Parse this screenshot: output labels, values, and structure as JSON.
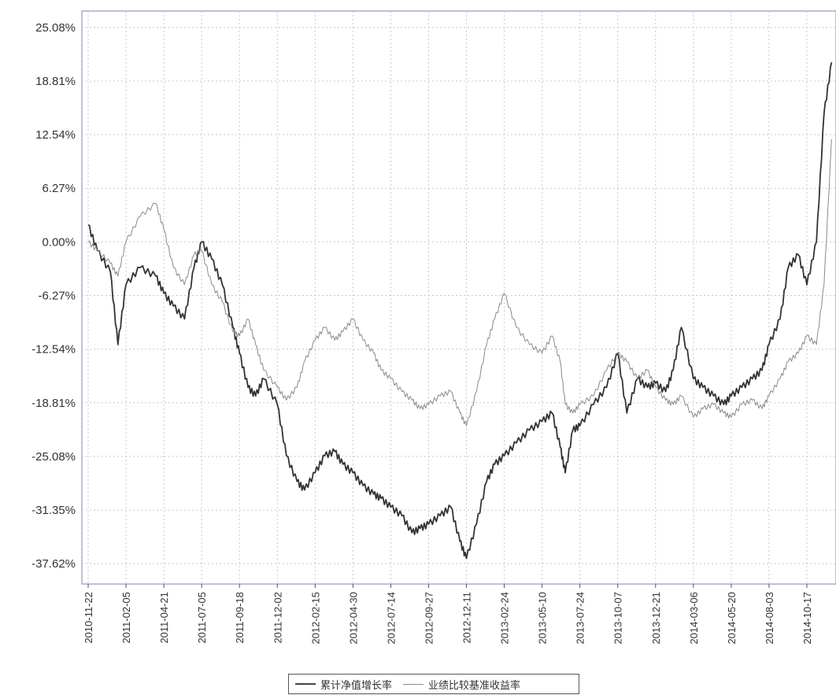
{
  "chart_data": {
    "type": "line",
    "title": "",
    "xlabel": "",
    "ylabel": "",
    "y_unit": "%",
    "ylim": [
      -40.0,
      27.0
    ],
    "y_ticks": [
      25.08,
      18.81,
      12.54,
      6.27,
      0.0,
      -6.27,
      -12.54,
      -18.81,
      -25.08,
      -31.35,
      -37.62
    ],
    "y_tick_labels": [
      "25.08%",
      "18.81%",
      "12.54%",
      "6.27%",
      "0.00%",
      "-6.27%",
      "-12.54%",
      "-18.81%",
      "-25.08%",
      "-31.35%",
      "-37.62%"
    ],
    "x_tick_labels": [
      "2010-11-22",
      "2011-02-05",
      "2011-04-21",
      "2011-07-05",
      "2011-09-18",
      "2011-12-02",
      "2012-02-15",
      "2012-04-30",
      "2012-07-14",
      "2012-09-27",
      "2012-12-11",
      "2013-02-24",
      "2013-05-10",
      "2013-07-24",
      "2013-10-07",
      "2013-12-21",
      "2014-03-06",
      "2014-05-20",
      "2014-08-03",
      "2014-10-17"
    ],
    "grid": true,
    "legend_position": "bottom",
    "series": [
      {
        "name": "累计净值增长率",
        "color": "#333333",
        "x": [
          "2010-11-22",
          "2010-12-10",
          "2011-01-05",
          "2011-01-20",
          "2011-02-05",
          "2011-03-05",
          "2011-04-05",
          "2011-04-21",
          "2011-05-10",
          "2011-06-01",
          "2011-06-20",
          "2011-07-05",
          "2011-07-25",
          "2011-08-15",
          "2011-09-05",
          "2011-09-18",
          "2011-10-05",
          "2011-10-20",
          "2011-11-05",
          "2011-12-02",
          "2011-12-20",
          "2012-01-10",
          "2012-01-25",
          "2012-02-15",
          "2012-03-05",
          "2012-03-25",
          "2012-04-10",
          "2012-04-30",
          "2012-05-20",
          "2012-06-10",
          "2012-06-25",
          "2012-07-14",
          "2012-08-05",
          "2012-08-25",
          "2012-09-10",
          "2012-09-27",
          "2012-10-20",
          "2012-11-10",
          "2012-11-28",
          "2012-12-11",
          "2012-12-31",
          "2013-01-20",
          "2013-02-05",
          "2013-02-24",
          "2013-03-20",
          "2013-04-15",
          "2013-05-10",
          "2013-05-30",
          "2013-06-15",
          "2013-06-25",
          "2013-07-10",
          "2013-07-24",
          "2013-08-20",
          "2013-09-15",
          "2013-10-07",
          "2013-10-25",
          "2013-11-15",
          "2013-12-05",
          "2013-12-21",
          "2014-01-10",
          "2014-01-25",
          "2014-02-10",
          "2014-03-06",
          "2014-03-25",
          "2014-04-15",
          "2014-05-05",
          "2014-05-20",
          "2014-06-10",
          "2014-07-01",
          "2014-07-20",
          "2014-08-03",
          "2014-08-25",
          "2014-09-10",
          "2014-09-30",
          "2014-10-17",
          "2014-11-05",
          "2014-11-20",
          "2014-12-05"
        ],
        "values": [
          2.0,
          -1.0,
          -3.5,
          -12.0,
          -5.0,
          -3.0,
          -4.0,
          -6.0,
          -7.5,
          -9.0,
          -3.0,
          0.0,
          -2.0,
          -5.0,
          -10.0,
          -13.0,
          -17.0,
          -18.0,
          -16.0,
          -19.0,
          -25.0,
          -28.0,
          -29.0,
          -27.0,
          -25.0,
          -24.5,
          -26.0,
          -27.0,
          -28.5,
          -29.5,
          -30.0,
          -31.0,
          -32.0,
          -34.0,
          -33.5,
          -33.0,
          -32.0,
          -31.0,
          -35.0,
          -37.0,
          -33.0,
          -28.0,
          -26.0,
          -25.0,
          -23.5,
          -22.0,
          -21.0,
          -20.0,
          -24.0,
          -27.0,
          -22.0,
          -21.5,
          -19.0,
          -17.0,
          -13.0,
          -20.0,
          -16.0,
          -17.0,
          -16.5,
          -17.5,
          -15.0,
          -10.0,
          -16.0,
          -17.0,
          -18.0,
          -19.0,
          -18.0,
          -17.0,
          -16.0,
          -15.0,
          -12.0,
          -9.0,
          -3.0,
          -1.5,
          -5.0,
          0.0,
          15.0,
          21.0
        ]
      },
      {
        "name": "业绩比较基准收益率",
        "color": "#8a8a8a",
        "x": [
          "2010-11-22",
          "2010-12-10",
          "2011-01-05",
          "2011-01-20",
          "2011-02-05",
          "2011-03-05",
          "2011-04-05",
          "2011-04-21",
          "2011-05-10",
          "2011-06-01",
          "2011-06-20",
          "2011-07-05",
          "2011-07-25",
          "2011-08-15",
          "2011-09-05",
          "2011-09-18",
          "2011-10-05",
          "2011-10-20",
          "2011-11-05",
          "2011-12-02",
          "2011-12-20",
          "2012-01-10",
          "2012-01-25",
          "2012-02-15",
          "2012-03-05",
          "2012-03-25",
          "2012-04-10",
          "2012-04-30",
          "2012-05-20",
          "2012-06-10",
          "2012-06-25",
          "2012-07-14",
          "2012-08-05",
          "2012-08-25",
          "2012-09-10",
          "2012-09-27",
          "2012-10-20",
          "2012-11-10",
          "2012-11-28",
          "2012-12-11",
          "2012-12-31",
          "2013-01-20",
          "2013-02-05",
          "2013-02-24",
          "2013-03-20",
          "2013-04-15",
          "2013-05-10",
          "2013-05-30",
          "2013-06-15",
          "2013-06-25",
          "2013-07-10",
          "2013-07-24",
          "2013-08-20",
          "2013-09-15",
          "2013-10-07",
          "2013-10-25",
          "2013-11-15",
          "2013-12-05",
          "2013-12-21",
          "2014-01-10",
          "2014-01-25",
          "2014-02-10",
          "2014-03-06",
          "2014-03-25",
          "2014-04-15",
          "2014-05-05",
          "2014-05-20",
          "2014-06-10",
          "2014-07-01",
          "2014-07-20",
          "2014-08-03",
          "2014-08-25",
          "2014-09-10",
          "2014-09-30",
          "2014-10-17",
          "2014-11-05",
          "2014-11-20",
          "2014-12-05"
        ],
        "values": [
          0.0,
          -1.0,
          -2.5,
          -4.0,
          0.0,
          3.0,
          4.5,
          1.5,
          -3.0,
          -5.0,
          -1.5,
          -1.0,
          -5.0,
          -7.0,
          -10.5,
          -11.0,
          -9.0,
          -12.0,
          -15.0,
          -17.0,
          -18.5,
          -17.0,
          -14.0,
          -11.5,
          -10.0,
          -11.5,
          -10.5,
          -9.0,
          -11.5,
          -13.0,
          -15.0,
          -16.0,
          -17.5,
          -18.5,
          -19.5,
          -19.0,
          -18.0,
          -17.5,
          -20.0,
          -21.5,
          -17.5,
          -12.0,
          -9.0,
          -6.0,
          -10.0,
          -12.0,
          -13.0,
          -11.0,
          -14.0,
          -19.0,
          -20.0,
          -19.0,
          -18.0,
          -15.0,
          -13.0,
          -14.0,
          -16.0,
          -15.0,
          -17.0,
          -18.5,
          -19.0,
          -18.0,
          -20.5,
          -19.5,
          -19.0,
          -20.0,
          -20.5,
          -19.0,
          -18.5,
          -19.5,
          -18.0,
          -16.0,
          -14.0,
          -13.0,
          -11.0,
          -12.0,
          -5.0,
          12.0
        ]
      }
    ]
  }
}
